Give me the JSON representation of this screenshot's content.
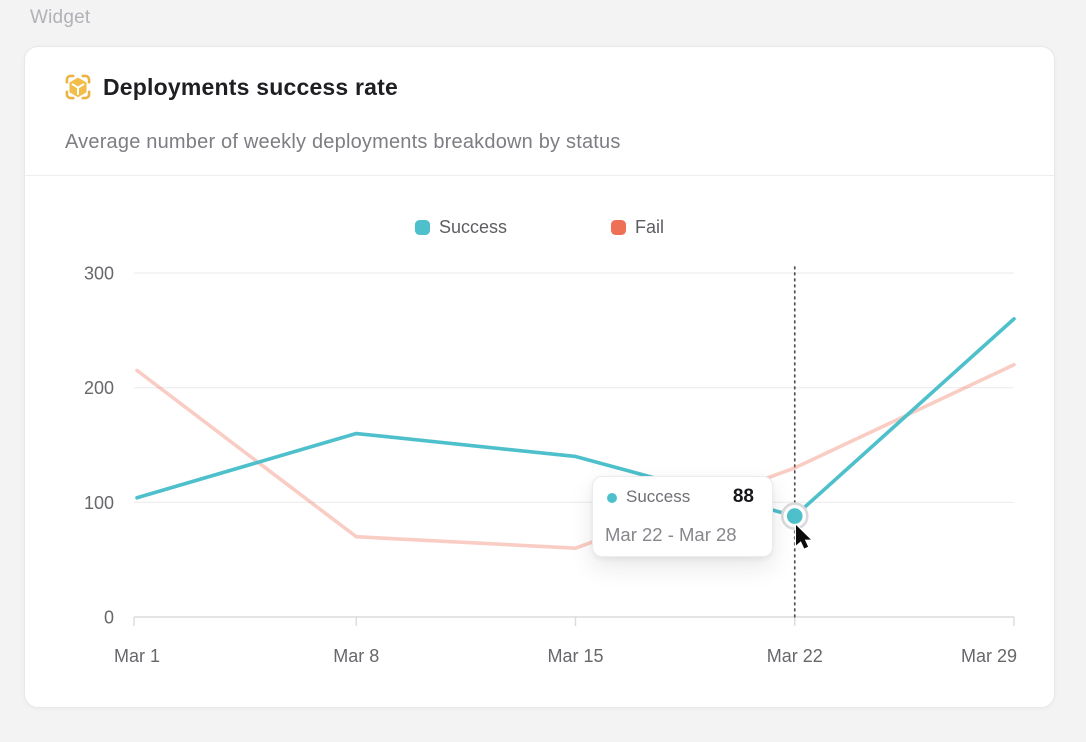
{
  "page": {
    "label": "Widget",
    "background": "#f3f3f4"
  },
  "card": {
    "title": "Deployments success rate",
    "subtitle": "Average number of weekly deployments breakdown by status",
    "icon": "package-cube-icon",
    "icon_color": "#F2BD49"
  },
  "chart_data": {
    "type": "line",
    "title": "Deployments success rate",
    "x": [
      "Mar 1",
      "Mar 8",
      "Mar 15",
      "Mar 22",
      "Mar 29"
    ],
    "series": [
      {
        "name": "Success",
        "color": "#4EC0CB",
        "values": [
          104,
          160,
          140,
          88,
          260
        ],
        "emphasis": "active"
      },
      {
        "name": "Fail",
        "color": "#EE7157",
        "values": [
          215,
          70,
          60,
          130,
          220
        ],
        "emphasis": "dimmed",
        "dim_opacity": 0.35
      }
    ],
    "xlabel": "",
    "ylabel": "",
    "ylim": [
      0,
      300
    ],
    "yticks": [
      0,
      100,
      200,
      300
    ],
    "grid": true,
    "legend_position": "top-center",
    "hover": {
      "series": "Success",
      "x_index": 3,
      "value": 88,
      "x_label": "Mar 22",
      "guide_line": "dotted-vertical"
    }
  },
  "tooltip": {
    "series": "Success",
    "value": "88",
    "range": "Mar 22 - Mar 28",
    "dot_color": "#4EC0CB"
  }
}
